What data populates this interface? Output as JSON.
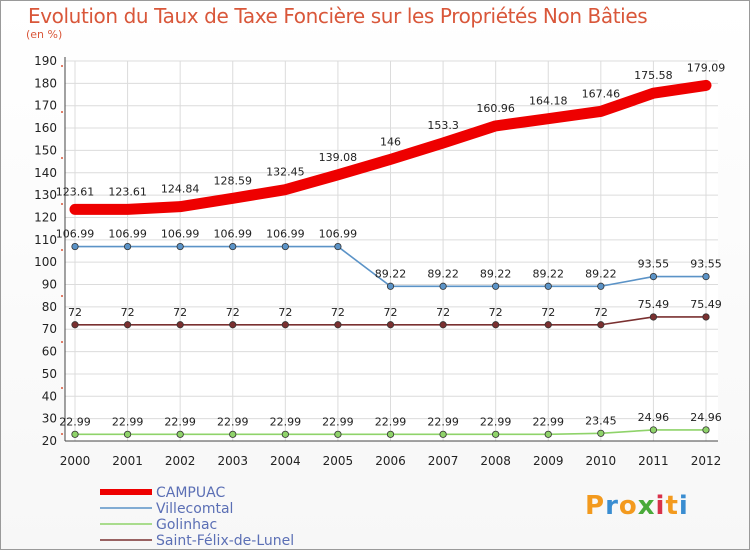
{
  "header": {
    "title": "Evolution du Taux de Taxe Foncière sur les Propriétés Non Bâties",
    "subtitle": "(en %)"
  },
  "logo": {
    "letters": [
      "P",
      "r",
      "o",
      "x",
      "i",
      "t",
      "i"
    ],
    "colors": [
      "#f39a1e",
      "#3a8dd1",
      "#f39a1e",
      "#4aaa3a",
      "#d8314a",
      "#f39a1e",
      "#3a8dd1"
    ]
  },
  "chart_data": {
    "type": "line",
    "title": "Evolution du Taux de Taxe Foncière sur les Propriétés Non Bâties",
    "ylabel": "(en %)",
    "xlabel": "",
    "ylim": [
      20,
      190
    ],
    "yticks": [
      20,
      30,
      40,
      50,
      60,
      70,
      80,
      90,
      100,
      110,
      120,
      130,
      140,
      150,
      160,
      170,
      180,
      190
    ],
    "categories": [
      "2000",
      "2001",
      "2002",
      "2003",
      "2004",
      "2005",
      "2006",
      "2007",
      "2008",
      "2009",
      "2010",
      "2011",
      "2012"
    ],
    "grid": true,
    "series": [
      {
        "name": "CAMPUAC",
        "color": "#ee0000",
        "values": [
          123.61,
          123.61,
          124.84,
          128.59,
          132.45,
          139.08,
          146,
          153.3,
          160.96,
          164.18,
          167.46,
          175.58,
          179.09
        ],
        "labels": [
          "123.61",
          "123.61",
          "124.84",
          "128.59",
          "132.45",
          "139.08",
          "146",
          "153.3",
          "160.96",
          "164.18",
          "167.46",
          "175.58",
          "179.09"
        ]
      },
      {
        "name": "Villecomtal",
        "color": "#5b93c7",
        "values": [
          106.99,
          106.99,
          106.99,
          106.99,
          106.99,
          106.99,
          89.22,
          89.22,
          89.22,
          89.22,
          89.22,
          93.55,
          93.55
        ],
        "labels": [
          "106.99",
          "106.99",
          "106.99",
          "106.99",
          "106.99",
          "106.99",
          "89.22",
          "89.22",
          "89.22",
          "89.22",
          "89.22",
          "93.55",
          "93.55"
        ]
      },
      {
        "name": "Golinhac",
        "color": "#8fd36a",
        "values": [
          22.99,
          22.99,
          22.99,
          22.99,
          22.99,
          22.99,
          22.99,
          22.99,
          22.99,
          22.99,
          23.45,
          24.96,
          24.96
        ],
        "labels": [
          "22.99",
          "22.99",
          "22.99",
          "22.99",
          "22.99",
          "22.99",
          "22.99",
          "22.99",
          "22.99",
          "22.99",
          "23.45",
          "24.96",
          "24.96"
        ]
      },
      {
        "name": "Saint-Félix-de-Lunel",
        "color": "#7a3030",
        "values": [
          72,
          72,
          72,
          72,
          72,
          72,
          72,
          72,
          72,
          72,
          72,
          75.49,
          75.49
        ],
        "labels": [
          "72",
          "72",
          "72",
          "72",
          "72",
          "72",
          "72",
          "72",
          "72",
          "72",
          "72",
          "75.49",
          "75.49"
        ]
      }
    ],
    "legend": "bottom-left"
  }
}
